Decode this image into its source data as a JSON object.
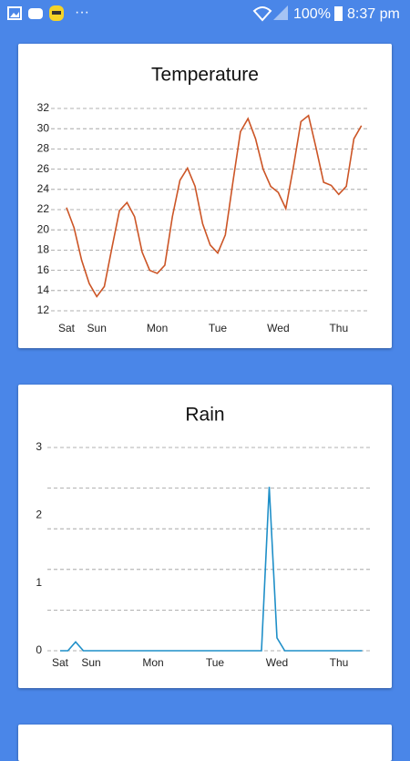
{
  "status_bar": {
    "dots": "···",
    "battery": "100%",
    "time": "8:37 pm"
  },
  "chart_data": [
    {
      "type": "line",
      "title": "Temperature",
      "categories": [
        "Sat",
        null,
        null,
        null,
        "Sun",
        null,
        null,
        null,
        null,
        null,
        null,
        null,
        "Mon",
        null,
        null,
        null,
        null,
        null,
        null,
        null,
        "Tue",
        null,
        null,
        null,
        null,
        null,
        null,
        null,
        "Wed",
        null,
        null,
        null,
        null,
        null,
        null,
        null,
        "Thu",
        null,
        null,
        null
      ],
      "values": [
        22.2,
        20.2,
        17.0,
        14.7,
        13.4,
        14.4,
        18.2,
        21.9,
        22.7,
        21.3,
        17.8,
        16.0,
        15.7,
        16.5,
        21.3,
        24.9,
        26.1,
        24.3,
        20.6,
        18.5,
        17.7,
        19.5,
        24.7,
        29.7,
        31.0,
        29.0,
        26.0,
        24.3,
        23.7,
        22.1,
        26.2,
        30.7,
        31.3,
        28.1,
        24.7,
        24.4,
        23.5,
        24.3,
        29.0,
        30.3
      ],
      "color": "#cc5526",
      "ylim": [
        12,
        32
      ],
      "yticks": [
        12,
        14,
        16,
        18,
        20,
        22,
        24,
        26,
        28,
        30,
        32
      ],
      "grid": true
    },
    {
      "type": "line",
      "title": "Rain",
      "categories": [
        "Sat",
        null,
        null,
        null,
        "Sun",
        null,
        null,
        null,
        null,
        null,
        null,
        null,
        "Mon",
        null,
        null,
        null,
        null,
        null,
        null,
        null,
        "Tue",
        null,
        null,
        null,
        null,
        null,
        null,
        null,
        "Wed",
        null,
        null,
        null,
        null,
        null,
        null,
        null,
        "Thu",
        null,
        null,
        null
      ],
      "values": [
        0,
        0,
        0.13,
        0,
        0,
        0,
        0,
        0,
        0,
        0,
        0,
        0,
        0,
        0,
        0,
        0,
        0,
        0,
        0,
        0,
        0,
        0,
        0,
        0,
        0,
        0,
        0,
        2.42,
        0.19,
        0,
        0,
        0,
        0,
        0,
        0,
        0,
        0,
        0,
        0,
        0
      ],
      "color": "#1f8fc8",
      "ylim": [
        0,
        3
      ],
      "yticks": [
        0,
        1,
        2,
        3
      ],
      "grid": true,
      "ygrid": [
        0,
        0.6,
        1.2,
        1.8,
        2.4,
        3
      ]
    }
  ]
}
